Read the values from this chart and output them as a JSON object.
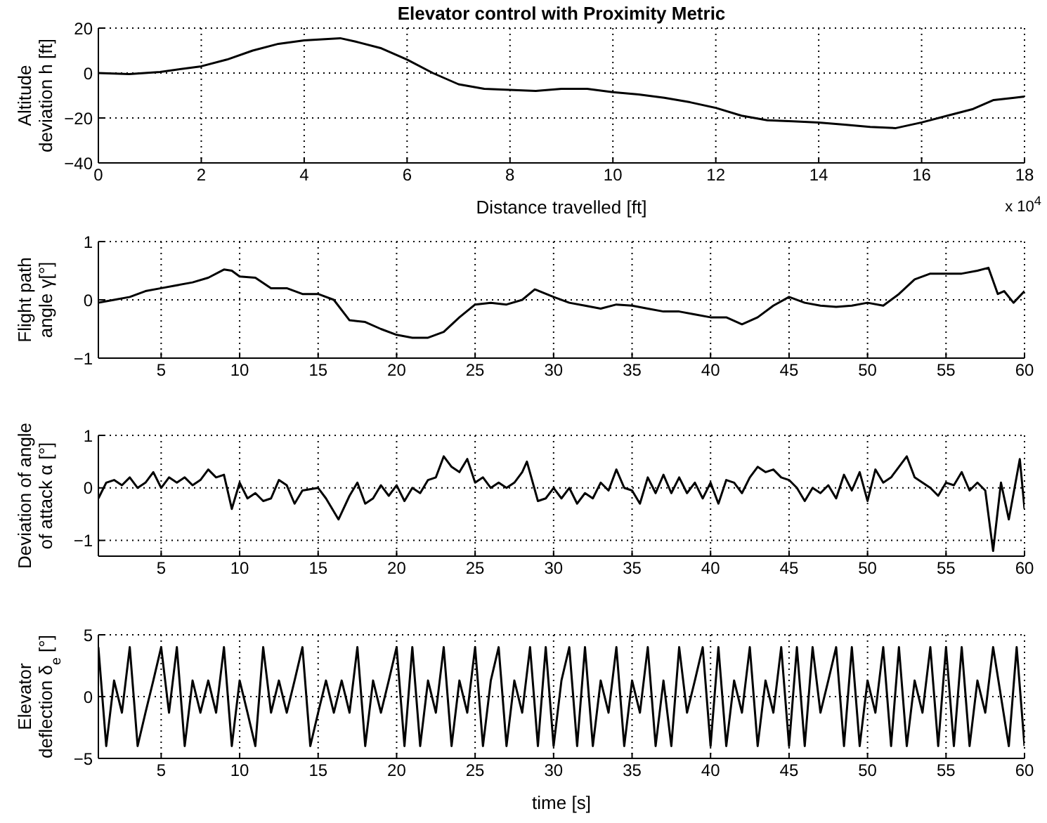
{
  "chart_data": [
    {
      "type": "line",
      "title": "Elevator control with Proximity Metric",
      "xlabel": "Distance travelled [ft]",
      "ylabel": "Altitude deviation h [ft]",
      "annotations": [
        "x 10$^{4}$"
      ],
      "x": [
        0,
        0.6,
        1.2,
        2,
        2.5,
        3,
        3.5,
        4,
        4.7,
        5,
        5.5,
        6,
        6.5,
        7,
        7.5,
        8,
        8.5,
        9,
        9.5,
        10,
        10.5,
        11,
        11.5,
        12,
        12.5,
        13,
        13.5,
        14,
        14.5,
        15,
        15.5,
        16,
        16.5,
        17,
        17.4,
        17.8,
        18
      ],
      "series": [
        {
          "color": "#000000",
          "values": [
            0,
            -0.5,
            0.5,
            3,
            6,
            10,
            13,
            14.5,
            15.5,
            14,
            11,
            6,
            0,
            -5,
            -7,
            -7.5,
            -8,
            -7,
            -7,
            -8.5,
            -9.5,
            -11,
            -13,
            -15.5,
            -19,
            -21,
            -21.5,
            -22,
            -23,
            -24,
            -24.5,
            -22,
            -19,
            -16,
            -12,
            -11,
            -10.5
          ]
        }
      ],
      "xlim": [
        0,
        18
      ],
      "xticks": [
        0,
        2,
        4,
        6,
        8,
        10,
        12,
        14,
        16,
        18
      ],
      "ylim": [
        -40,
        20
      ],
      "yticks": [
        -40,
        -20,
        0,
        20
      ],
      "grid": true,
      "line_style": "solid"
    },
    {
      "type": "line",
      "ylabel": "Flight path angle γ[°]",
      "x": [
        1,
        2,
        3,
        4,
        5,
        6,
        7,
        8,
        9,
        9.5,
        10,
        11,
        12,
        13,
        14,
        15,
        16,
        17,
        18,
        19,
        20,
        21,
        22,
        23,
        24,
        25,
        26,
        27,
        28,
        28.8,
        30,
        31,
        32,
        33,
        34,
        35,
        36,
        37,
        38,
        39,
        40,
        41,
        42,
        43,
        44,
        45,
        46,
        47,
        48,
        49,
        50,
        51,
        52,
        53,
        54,
        55,
        56,
        57,
        57.7,
        58.3,
        58.7,
        59.3,
        60
      ],
      "series": [
        {
          "color": "#000000",
          "values": [
            -0.05,
            0,
            0.05,
            0.15,
            0.2,
            0.25,
            0.3,
            0.38,
            0.52,
            0.5,
            0.4,
            0.38,
            0.2,
            0.2,
            0.1,
            0.1,
            0,
            -0.35,
            -0.38,
            -0.5,
            -0.6,
            -0.65,
            -0.65,
            -0.55,
            -0.3,
            -0.08,
            -0.05,
            -0.08,
            0,
            0.18,
            0.05,
            -0.05,
            -0.1,
            -0.15,
            -0.08,
            -0.1,
            -0.15,
            -0.2,
            -0.2,
            -0.25,
            -0.3,
            -0.3,
            -0.42,
            -0.3,
            -0.1,
            0.05,
            -0.05,
            -0.1,
            -0.12,
            -0.1,
            -0.05,
            -0.1,
            0.1,
            0.35,
            0.45,
            0.45,
            0.45,
            0.5,
            0.55,
            0.1,
            0.15,
            -0.05,
            0.15
          ]
        }
      ],
      "xlim": [
        1,
        60
      ],
      "xticks": [
        5,
        10,
        15,
        20,
        25,
        30,
        35,
        40,
        45,
        50,
        55,
        60
      ],
      "ylim": [
        -1,
        1
      ],
      "yticks": [
        -1,
        0,
        1
      ],
      "grid": true,
      "line_style": "solid"
    },
    {
      "type": "line",
      "ylabel": "Deviation of angle of attack α [°]",
      "x": [
        1,
        1.5,
        2,
        2.5,
        3,
        3.5,
        4,
        4.5,
        5,
        5.5,
        6,
        6.5,
        7,
        7.5,
        8,
        8.5,
        9,
        9.5,
        10,
        10.5,
        11,
        11.5,
        12,
        12.5,
        13,
        13.5,
        14,
        15,
        15.5,
        16.3,
        17,
        17.5,
        18,
        18.5,
        19,
        19.5,
        20,
        20.5,
        21,
        21.5,
        22,
        22.5,
        23,
        23.5,
        24,
        24.5,
        25,
        25.5,
        26,
        26.5,
        27,
        27.5,
        28,
        28.3,
        29,
        29.5,
        30,
        30.5,
        31,
        31.5,
        32,
        32.5,
        33,
        33.5,
        34,
        34.5,
        35,
        35.5,
        36,
        36.5,
        37,
        37.5,
        38,
        38.5,
        39,
        39.5,
        40,
        40.5,
        41,
        41.5,
        42,
        42.5,
        43,
        43.5,
        44,
        44.5,
        45,
        45.5,
        46,
        46.5,
        47,
        47.5,
        48,
        48.5,
        49,
        49.5,
        50,
        50.5,
        51,
        51.5,
        52,
        52.5,
        53,
        53.5,
        54,
        54.5,
        55,
        55.5,
        56,
        56.5,
        57,
        57.5,
        58,
        58.5,
        59,
        59.7,
        60
      ],
      "series": [
        {
          "color": "#000000",
          "values": [
            -0.2,
            0.1,
            0.15,
            0.05,
            0.2,
            0,
            0.1,
            0.3,
            0,
            0.2,
            0.1,
            0.2,
            0.05,
            0.15,
            0.35,
            0.2,
            0.25,
            -0.4,
            0.1,
            -0.2,
            -0.1,
            -0.25,
            -0.2,
            0.15,
            0.05,
            -0.3,
            -0.05,
            0,
            -0.2,
            -0.6,
            -0.15,
            0.1,
            -0.3,
            -0.2,
            0.05,
            -0.15,
            0.05,
            -0.25,
            0,
            -0.1,
            0.15,
            0.2,
            0.6,
            0.4,
            0.3,
            0.55,
            0.1,
            0.2,
            0,
            0.1,
            0,
            0.1,
            0.3,
            0.5,
            -0.25,
            -0.2,
            0,
            -0.2,
            0,
            -0.3,
            -0.1,
            -0.2,
            0.1,
            -0.05,
            0.35,
            0,
            -0.05,
            -0.3,
            0.2,
            -0.1,
            0.25,
            -0.1,
            0.2,
            -0.1,
            0.1,
            -0.2,
            0.1,
            -0.3,
            0.15,
            0.1,
            -0.1,
            0.2,
            0.4,
            0.3,
            0.35,
            0.2,
            0.15,
            0,
            -0.25,
            0,
            -0.1,
            0.05,
            -0.2,
            0.25,
            -0.05,
            0.3,
            -0.25,
            0.35,
            0.1,
            0.2,
            0.4,
            0.6,
            0.2,
            0.1,
            0,
            -0.15,
            0.1,
            0.05,
            0.3,
            -0.05,
            0.1,
            -0.05,
            -1.2,
            0.1,
            -0.6,
            0.55,
            -0.4
          ]
        }
      ],
      "xlim": [
        1,
        60
      ],
      "xticks": [
        5,
        10,
        15,
        20,
        25,
        30,
        35,
        40,
        45,
        50,
        55,
        60
      ],
      "ylim": [
        -1.3,
        1
      ],
      "yticks": [
        -1,
        0,
        1
      ],
      "grid": true,
      "line_style": "solid"
    },
    {
      "type": "line",
      "xlabel": "time [s]",
      "ylabel": "Elevator deflection δ$_{e}$ [°]",
      "x": [
        1,
        1.5,
        2,
        2.5,
        3,
        3.5,
        4,
        4.5,
        5,
        5.5,
        6,
        6.5,
        7,
        7.5,
        8,
        8.5,
        9,
        9.5,
        10,
        10.5,
        11,
        11.5,
        12,
        12.5,
        13,
        13.5,
        14,
        14.5,
        15,
        15.5,
        16,
        16.5,
        17,
        17.5,
        18,
        18.5,
        19,
        19.5,
        20,
        20.5,
        21,
        21.5,
        22,
        22.5,
        23,
        23.5,
        24,
        24.5,
        25,
        25.5,
        26,
        26.5,
        27,
        27.5,
        28,
        28.5,
        29,
        29.5,
        30,
        30.5,
        31,
        31.5,
        32,
        32.5,
        33,
        33.5,
        34,
        34.5,
        35,
        35.5,
        36,
        36.5,
        37,
        37.5,
        38,
        38.5,
        39,
        39.5,
        40,
        40.5,
        41,
        41.5,
        42,
        42.5,
        43,
        43.5,
        44,
        44.5,
        45,
        45.5,
        46,
        46.5,
        47,
        47.5,
        48,
        48.5,
        49,
        49.5,
        50,
        50.5,
        51,
        51.5,
        52,
        52.5,
        53,
        53.5,
        54,
        54.5,
        55,
        55.5,
        56,
        56.5,
        57,
        57.5,
        58,
        58.5,
        59,
        59.5,
        60
      ],
      "series": [
        {
          "color": "#000000",
          "values": [
            4,
            -4,
            1.3,
            -1.3,
            4,
            -4,
            -1.3,
            1.3,
            4,
            -1.3,
            4,
            -4,
            1.3,
            -1.3,
            1.3,
            -1.3,
            4,
            -4,
            1.3,
            -1.3,
            -4,
            4,
            -1.3,
            1.3,
            -1.3,
            1.3,
            4,
            -4,
            -1.3,
            1.3,
            -1.3,
            1.3,
            -1.3,
            4,
            -4,
            1.3,
            -1.3,
            1.3,
            4,
            -4,
            4,
            -4,
            1.3,
            -1.3,
            4,
            -4,
            1.3,
            -1.3,
            4,
            -4,
            1.3,
            4,
            -4,
            1.3,
            -1.3,
            4,
            -4,
            4,
            -4,
            1.3,
            4,
            -4,
            4,
            -4,
            1.3,
            -1.3,
            4,
            -4,
            1.3,
            -1.3,
            4,
            -4,
            1.3,
            -4,
            4,
            -1.3,
            1.3,
            4,
            -4,
            4,
            -4,
            1.3,
            -1.3,
            4,
            -4,
            1.3,
            -1.3,
            4,
            -4,
            4,
            -4,
            4,
            -1.3,
            1.3,
            4,
            -4,
            4,
            -4,
            1.3,
            -1.3,
            4,
            -4,
            4,
            -4,
            1.3,
            -1.3,
            4,
            -4,
            4,
            -4,
            4,
            -4,
            1.3,
            -1.3,
            4,
            0,
            -4,
            4,
            -4
          ]
        }
      ],
      "xlim": [
        1,
        60
      ],
      "xticks": [
        5,
        10,
        15,
        20,
        25,
        30,
        35,
        40,
        45,
        50,
        55,
        60
      ],
      "ylim": [
        -5,
        5
      ],
      "yticks": [
        -5,
        0,
        5
      ],
      "grid": true,
      "line_style": "solid"
    }
  ]
}
